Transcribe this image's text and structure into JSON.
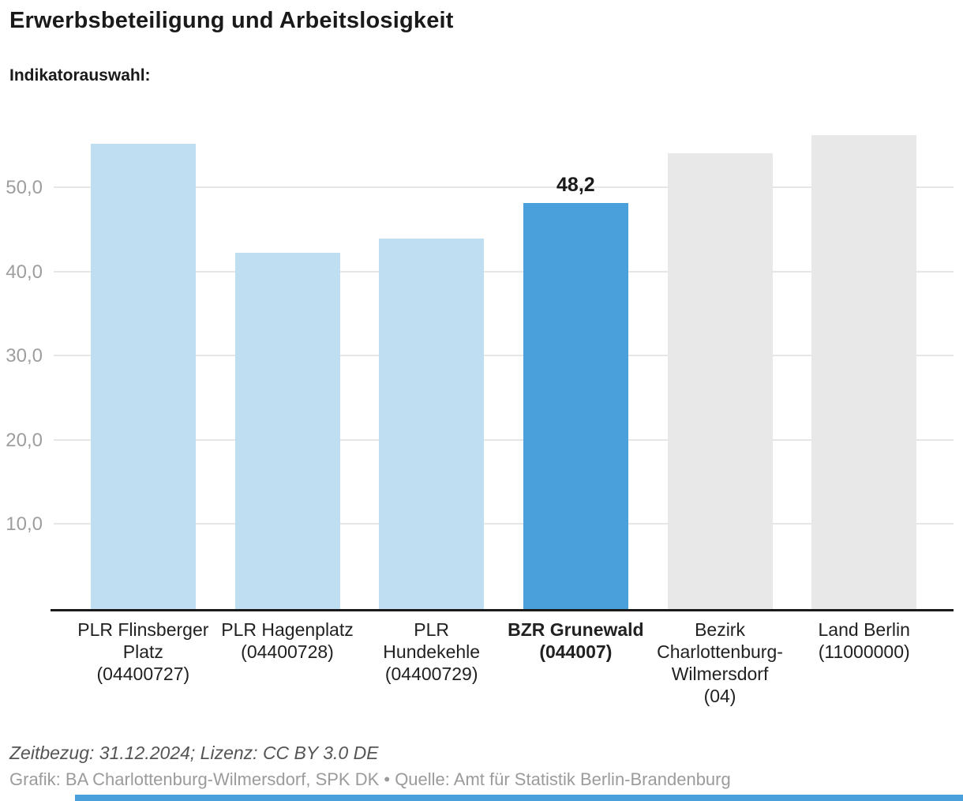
{
  "header": {
    "title": "Erwerbsbeteiligung und Arbeitslosigkeit",
    "subtitle": "Indikatorauswahl:"
  },
  "chart_data": {
    "type": "bar",
    "title": "Erwerbsbeteiligung und Arbeitslosigkeit",
    "categories": [
      "PLR Flinsberger Platz (04400727)",
      "PLR Hagenplatz (04400728)",
      "PLR Hundekehle (04400729)",
      "BZR Grunewald (044007)",
      "Bezirk Charlottenburg-Wilmersdorf (04)",
      "Land Berlin (11000000)"
    ],
    "category_lines": [
      [
        "PLR Flinsberger",
        "Platz",
        "(04400727)"
      ],
      [
        "PLR Hagenplatz",
        "(04400728)"
      ],
      [
        "PLR",
        "Hundekehle",
        "(04400729)"
      ],
      [
        "BZR Grunewald",
        "(044007)"
      ],
      [
        "Bezirk",
        "Charlottenburg-",
        "Wilmersdorf",
        "(04)"
      ],
      [
        "Land Berlin",
        "(11000000)"
      ]
    ],
    "values": [
      55.3,
      42.3,
      44.0,
      48.2,
      54.1,
      56.3
    ],
    "value_labels": [
      "",
      "",
      "",
      "48,2",
      "",
      ""
    ],
    "highlighted_index": 3,
    "bar_kinds": [
      "normal",
      "normal",
      "normal",
      "highlight",
      "context",
      "context"
    ],
    "y_ticks": [
      {
        "value": 10,
        "label": "10,0"
      },
      {
        "value": 20,
        "label": "20,0"
      },
      {
        "value": 30,
        "label": "30,0"
      },
      {
        "value": 40,
        "label": "40,0"
      },
      {
        "value": 50,
        "label": "50,0"
      }
    ],
    "ylim": [
      0,
      57.8
    ],
    "grid": true,
    "legend": false,
    "colors": {
      "bar_normal": "#bfdef1",
      "bar_highlight": "#4aa0da",
      "bar_context": "#e8e8e8",
      "gridline": "#e6e6e6",
      "axis_line": "#1a1a1a",
      "tick_text": "#9e9e9e"
    }
  },
  "footer": {
    "line1": "Zeitbezug: 31.12.2024; Lizenz: CC BY 3.0 DE",
    "line2": "Grafik: BA Charlottenburg-Wilmersdorf, SPK DK • Quelle: Amt für Statistik Berlin-Brandenburg"
  }
}
